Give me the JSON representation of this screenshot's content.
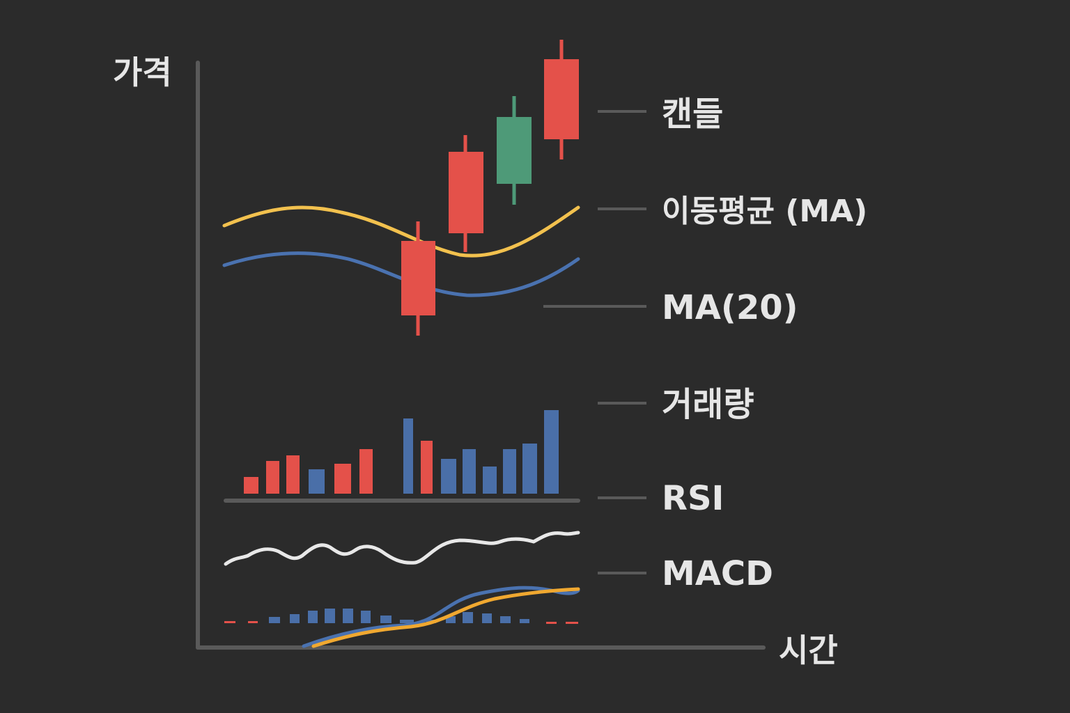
{
  "axes": {
    "y_label": "가격",
    "x_label": "시간"
  },
  "legend": {
    "items": [
      {
        "key": "candle",
        "label": "캔들"
      },
      {
        "key": "ma",
        "label": "이동평균 (MA)"
      },
      {
        "key": "ma20",
        "label": "MA(20)"
      },
      {
        "key": "volume",
        "label": "거래량"
      },
      {
        "key": "rsi",
        "label": "RSI"
      },
      {
        "key": "macd",
        "label": "MACD"
      }
    ]
  },
  "colors": {
    "background": "#2b2b2b",
    "axis": "#5a5a5a",
    "text": "#e6e6e6",
    "up_red": "#e4514a",
    "down_green": "#4e9a78",
    "ma_yellow": "#f2c14e",
    "ma20_blue": "#4a72b0",
    "volume_red": "#e4514a",
    "volume_blue": "#4a6fa8",
    "rsi_white": "#e8e8e8",
    "macd_orange": "#f0a830",
    "macd_blue": "#4a72b0"
  }
}
